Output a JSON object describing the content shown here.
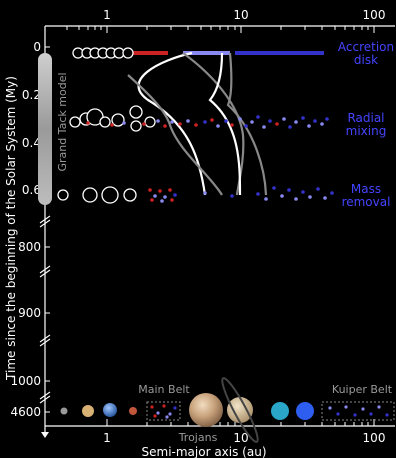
{
  "figure": {
    "y_axis_label": "Time since the beginning of the Solar System (My)",
    "x_axis_label": "Semi-major axis (au)",
    "x_scale": "log",
    "x_ticks": [
      "1",
      "10",
      "100"
    ],
    "y_ticks_top": [
      "0",
      "0.2",
      "0.4",
      "0.6"
    ],
    "y_ticks_bottom": [
      "800",
      "900",
      "1000",
      "4600"
    ],
    "side_label": "Grand Tack model",
    "stage_labels": [
      {
        "line1": "Accretion",
        "line2": "disk"
      },
      {
        "line1": "Radial",
        "line2": "mixing"
      },
      {
        "line1": "Mass",
        "line2": "removal"
      }
    ],
    "region_labels": {
      "main_belt": "Main Belt",
      "kuiper_belt": "Kuiper Belt",
      "trojans": "Trojans"
    },
    "colors": {
      "background": "#000000",
      "inner_disk": "#cc2222",
      "middle_disk": "#8888ee",
      "outer_disk": "#3333cc",
      "stage_label": "#4444ff",
      "gray_text": "#999999",
      "planet_outline": "#ffffff"
    },
    "planets": [
      "Mercury",
      "Venus",
      "Earth",
      "Mars",
      "Jupiter",
      "Saturn",
      "Uranus",
      "Neptune"
    ]
  }
}
